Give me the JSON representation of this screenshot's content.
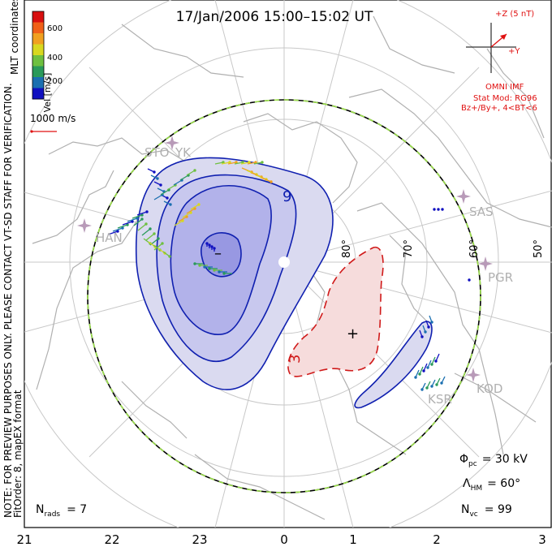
{
  "title": "17/Jan/2006 15:00–15:02 UT",
  "colorbar": {
    "unit_label": "Vel [m/s]",
    "ticks": [
      "200",
      "400",
      "600"
    ],
    "colors": [
      "#1010c0",
      "#1a6fb0",
      "#2a9a5a",
      "#6ec040",
      "#d8d820",
      "#f0a020",
      "#f06018",
      "#d81010"
    ]
  },
  "coordinates_label": "MLT coordinates",
  "watermark": "NOTE: FOR PREVIEW PURPOSES ONLY. PLEASE CONTACT VT-SD STAFF FOR VERIFICATION.",
  "fit_info": "FitOrder: 8, mapEX format",
  "scale_vector": "1000 m/s",
  "imf": {
    "z_label": "+Z (5 nT)",
    "y_label": "+Y",
    "source": "OMNI IMF",
    "stat_mod": "Stat Mod: RG96",
    "condition": "Bz+/By+, 4<BT<6",
    "color": "#e01010"
  },
  "latitude_labels": [
    "80°",
    "70°",
    "60°",
    "50°"
  ],
  "radar_labels": [
    "STO",
    "YK",
    "HAN",
    "SAS",
    "PGR",
    "KOD",
    "KSR"
  ],
  "mlt_labels": [
    "21",
    "22",
    "23",
    "0",
    "1",
    "2",
    "3"
  ],
  "contours": {
    "neg_label": "9",
    "pos_label": "3",
    "neg_center": "–",
    "pos_center": "+",
    "neg_fill": "#d8d8f0",
    "pos_fill": "#f5dede"
  },
  "stats": {
    "phi_pc": "Φ",
    "phi_sub": "pc",
    "phi_val": "= 30 kV",
    "lambda": "Λ",
    "lambda_sub": "HM",
    "lambda_val": "= 60°",
    "nvc": "N",
    "nvc_sub": "vc",
    "nvc_val": "= 99",
    "nrads": "N",
    "nrads_sub": "rads",
    "nrads_val": "= 7"
  }
}
